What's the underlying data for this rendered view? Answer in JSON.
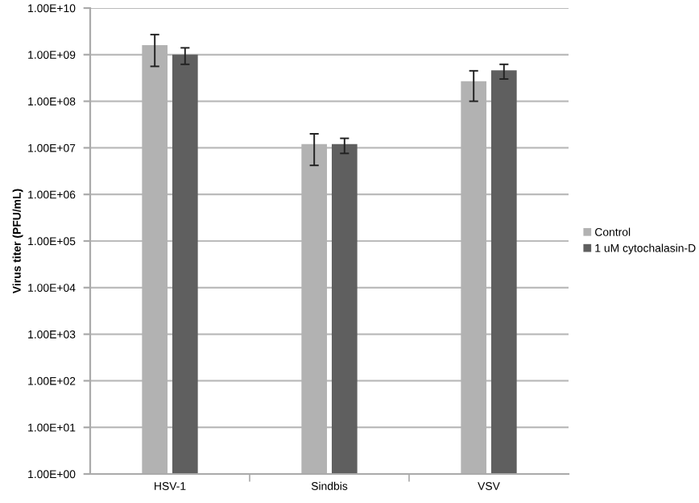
{
  "chart_data": {
    "type": "bar",
    "ylabel": "Virus titer (PFU/mL)",
    "categories": [
      "HSV-1",
      "Sindbis",
      "VSV"
    ],
    "series": [
      {
        "name": "Control",
        "color": "#b2b2b2",
        "values": [
          1600000000.0,
          12000000.0,
          270000000.0
        ],
        "errors": [
          [
            560000000.0,
            2700000000.0
          ],
          [
            4200000.0,
            20000000.0
          ],
          [
            100000000.0,
            450000000.0
          ]
        ]
      },
      {
        "name": "1 uM cytochalasin-D",
        "color": "#5f5f5f",
        "values": [
          1000000000.0,
          12000000.0,
          460000000.0
        ],
        "errors": [
          [
            620000000.0,
            1400000000.0
          ],
          [
            7600000.0,
            16000000.0
          ],
          [
            300000000.0,
            620000000.0
          ]
        ]
      }
    ],
    "log": "y",
    "ylim": [
      1,
      10000000000.0
    ],
    "yticks": [
      {
        "value": 1,
        "label": "1.00E+00"
      },
      {
        "value": 10,
        "label": "1.00E+01"
      },
      {
        "value": 100,
        "label": "1.00E+02"
      },
      {
        "value": 1000,
        "label": "1.00E+03"
      },
      {
        "value": 10000.0,
        "label": "1.00E+04"
      },
      {
        "value": 100000.0,
        "label": "1.00E+05"
      },
      {
        "value": 1000000.0,
        "label": "1.00E+06"
      },
      {
        "value": 10000000.0,
        "label": "1.00E+07"
      },
      {
        "value": 100000000.0,
        "label": "1.00E+08"
      },
      {
        "value": 1000000000.0,
        "label": "1.00E+09"
      },
      {
        "value": 10000000000.0,
        "label": "1.00E+10"
      }
    ],
    "grid": "y",
    "legend": "right"
  }
}
